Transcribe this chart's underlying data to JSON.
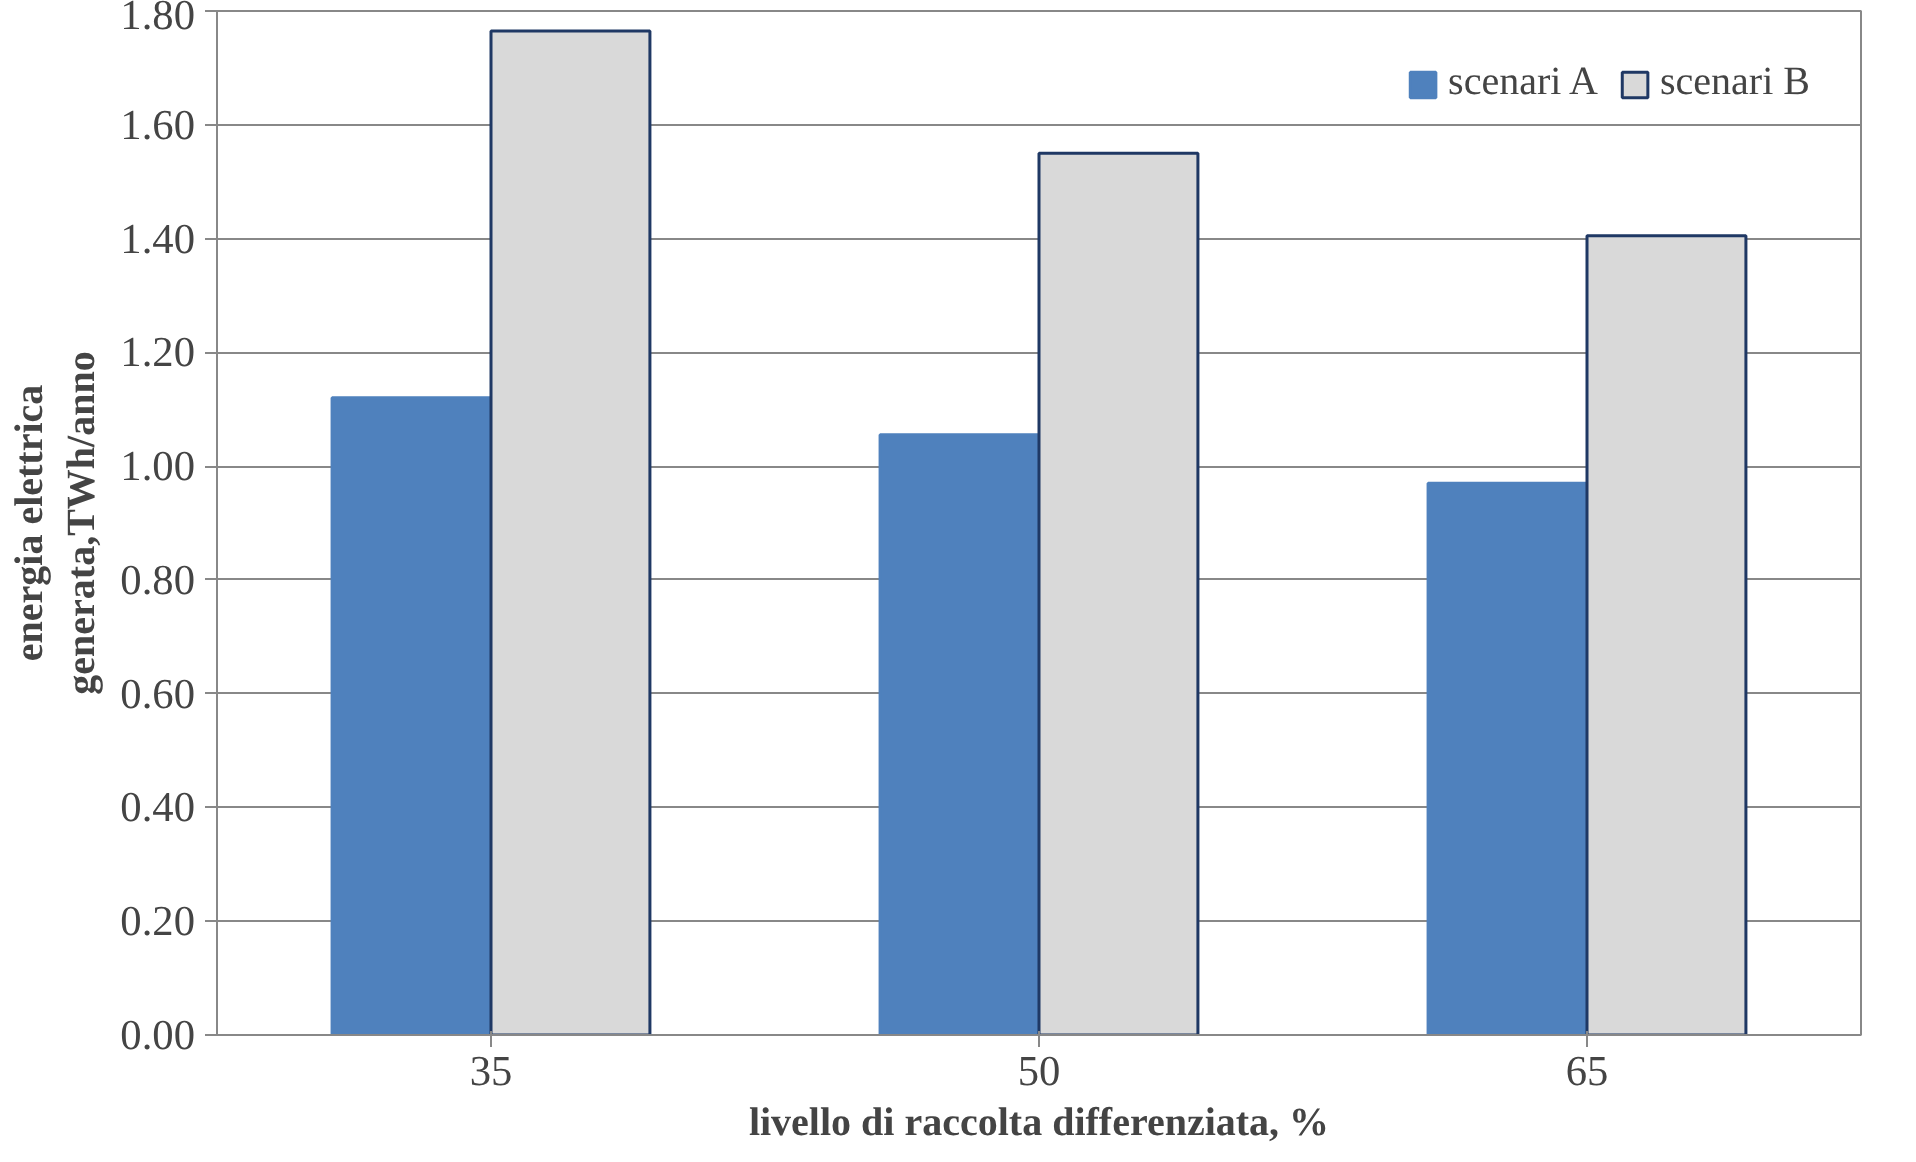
{
  "chart_data": {
    "type": "bar",
    "xlabel": "livello di raccolta differenziata, %",
    "ylabel": "energia elettrica\ngenerata,TWh/anno",
    "categories": [
      "35",
      "50",
      "65"
    ],
    "series": [
      {
        "name": "scenari A",
        "color": "#4f81bd",
        "values": [
          1.12,
          1.055,
          0.97
        ]
      },
      {
        "name": "scenari B",
        "color": "#d9d9d9",
        "values": [
          1.765,
          1.55,
          1.405
        ]
      }
    ],
    "ylim": [
      0,
      1.8
    ],
    "yticks": [
      {
        "value": 0,
        "label": "0.00"
      },
      {
        "value": 0.2,
        "label": "0.20"
      },
      {
        "value": 0.4,
        "label": "0.40"
      },
      {
        "value": 0.6,
        "label": "0.60"
      },
      {
        "value": 0.8,
        "label": "0.80"
      },
      {
        "value": 1.0,
        "label": "1.00"
      },
      {
        "value": 1.2,
        "label": "1.20"
      },
      {
        "value": 1.4,
        "label": "1.40"
      },
      {
        "value": 1.6,
        "label": "1.60"
      },
      {
        "value": 1.8,
        "label": "1.80"
      }
    ],
    "grid": "y",
    "legend": "top right"
  }
}
